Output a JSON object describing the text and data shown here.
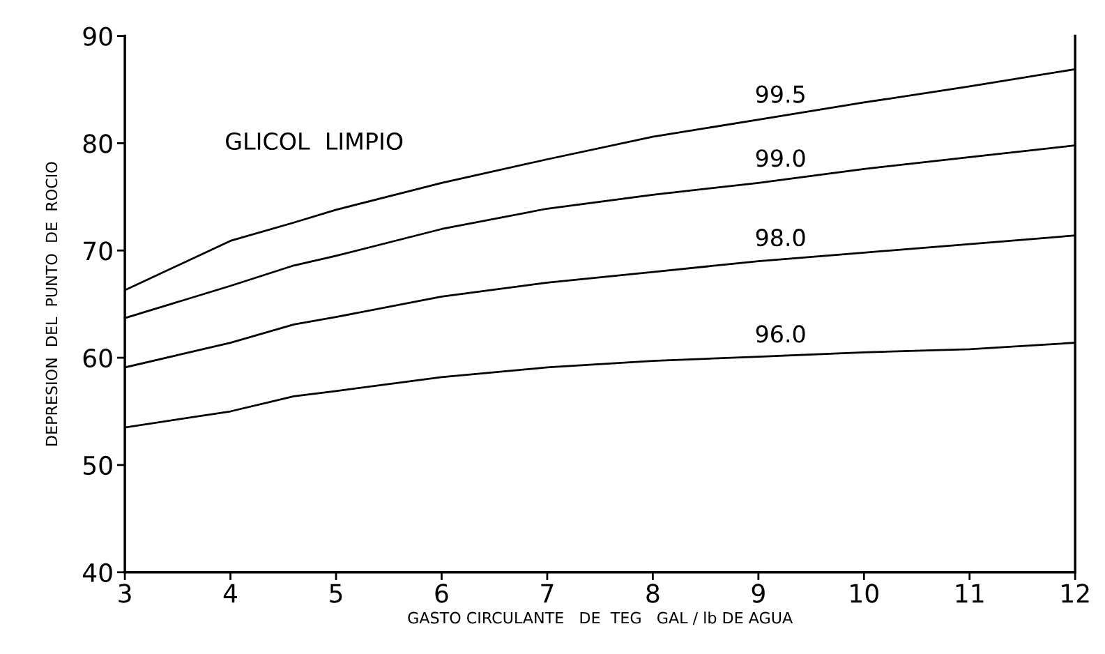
{
  "chart_data": {
    "type": "line",
    "xlabel": "GASTO CIRCULANTE   DE  TEG   GAL / lb DE AGUA",
    "ylabel": "DEPRESION  DEL  PUNTO  DE  ROCIO",
    "x": [
      3,
      4,
      4.6,
      5,
      6,
      7,
      8,
      9,
      10,
      11,
      12
    ],
    "series": [
      {
        "name": "99.5",
        "color": "#000000",
        "values": [
          66.3,
          70.9,
          72.6,
          73.8,
          76.3,
          78.5,
          80.6,
          82.2,
          83.8,
          85.3,
          86.9
        ]
      },
      {
        "name": "99.0",
        "color": "#000000",
        "values": [
          63.7,
          66.7,
          68.6,
          69.5,
          72.0,
          73.9,
          75.2,
          76.3,
          77.6,
          78.7,
          79.8
        ]
      },
      {
        "name": "98.0",
        "color": "#000000",
        "values": [
          59.1,
          61.4,
          63.1,
          63.8,
          65.7,
          67.0,
          68.0,
          69.0,
          69.8,
          70.6,
          71.4
        ]
      },
      {
        "name": "96.0",
        "color": "#000000",
        "values": [
          53.5,
          55.0,
          56.4,
          56.9,
          58.2,
          59.1,
          59.7,
          60.1,
          60.5,
          60.8,
          61.4
        ]
      }
    ],
    "annotations": [
      "GLICOL  LIMPIO"
    ],
    "xlim": [
      3,
      12
    ],
    "xticks": [
      3,
      4,
      5,
      6,
      7,
      8,
      9,
      10,
      11,
      12
    ],
    "ylim": [
      40,
      90
    ],
    "yticks": [
      40,
      50,
      60,
      70,
      80,
      90
    ],
    "grid": false,
    "legend": false,
    "marker": "none",
    "line_style": "solid"
  }
}
